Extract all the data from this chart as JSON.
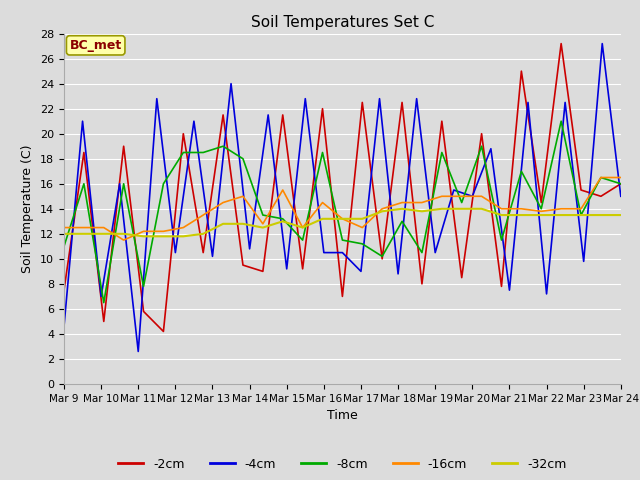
{
  "title": "Soil Temperatures Set C",
  "xlabel": "Time",
  "ylabel": "Soil Temperature (C)",
  "annotation": "BC_met",
  "ylim": [
    0,
    28
  ],
  "background_color": "#dcdcdc",
  "series": {
    "-2cm": {
      "color": "#cc0000",
      "lw": 1.2
    },
    "-4cm": {
      "color": "#0000dd",
      "lw": 1.2
    },
    "-8cm": {
      "color": "#00aa00",
      "lw": 1.2
    },
    "-16cm": {
      "color": "#ff8800",
      "lw": 1.2
    },
    "-32cm": {
      "color": "#cccc00",
      "lw": 1.5
    }
  },
  "xtick_labels": [
    "Mar 9",
    "Mar 10",
    "Mar 11",
    "Mar 12",
    "Mar 13",
    "Mar 14",
    "Mar 15",
    "Mar 16",
    "Mar 17",
    "Mar 18",
    "Mar 19",
    "Mar 20",
    "Mar 21",
    "Mar 22",
    "Mar 23",
    "Mar 24"
  ],
  "data_2cm": [
    7.5,
    18.5,
    5.0,
    19.0,
    5.8,
    4.2,
    20.0,
    10.5,
    21.5,
    9.5,
    9.0,
    21.5,
    9.2,
    22.0,
    7.0,
    22.5,
    10.0,
    22.5,
    8.0,
    21.0,
    8.5,
    20.0,
    7.8,
    25.0,
    14.5,
    27.2,
    15.5,
    15.0,
    16.0
  ],
  "data_4cm": [
    4.6,
    21.0,
    7.0,
    16.0,
    2.6,
    22.8,
    10.5,
    21.0,
    10.2,
    24.0,
    10.8,
    21.5,
    9.2,
    22.8,
    10.5,
    10.5,
    9.0,
    22.8,
    8.8,
    22.8,
    10.5,
    15.5,
    15.0,
    18.8,
    7.5,
    22.5,
    7.2,
    22.5,
    9.8,
    27.2,
    15.0
  ],
  "data_8cm": [
    11.0,
    16.0,
    6.5,
    16.0,
    7.8,
    16.0,
    18.5,
    18.5,
    19.0,
    18.0,
    13.5,
    13.2,
    11.5,
    18.5,
    11.5,
    11.2,
    10.2,
    13.0,
    10.5,
    18.5,
    14.5,
    19.0,
    11.5,
    17.0,
    14.0,
    21.0,
    13.5,
    16.5,
    16.0
  ],
  "data_16cm": [
    12.5,
    12.5,
    12.5,
    11.5,
    12.2,
    12.2,
    12.5,
    13.5,
    14.5,
    15.0,
    12.8,
    15.5,
    12.5,
    14.5,
    13.2,
    12.5,
    14.0,
    14.5,
    14.5,
    15.0,
    15.0,
    15.0,
    14.0,
    14.0,
    13.8,
    14.0,
    14.0,
    16.5,
    16.5
  ],
  "data_32cm": [
    12.0,
    12.0,
    12.0,
    12.0,
    11.8,
    11.8,
    11.8,
    12.0,
    12.8,
    12.8,
    12.5,
    13.0,
    12.5,
    13.2,
    13.2,
    13.2,
    13.8,
    14.0,
    13.8,
    14.0,
    14.0,
    14.0,
    13.5,
    13.5,
    13.5,
    13.5,
    13.5,
    13.5,
    13.5
  ]
}
